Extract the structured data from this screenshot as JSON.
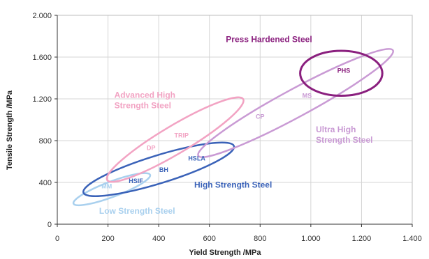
{
  "chart_data": {
    "type": "scatter",
    "title": "",
    "xlabel": "Yield Strength /MPa",
    "ylabel": "Tensile Strength /MPa",
    "xlim": [
      0,
      1400
    ],
    "ylim": [
      0,
      2000
    ],
    "x_ticks": [
      0,
      200,
      400,
      600,
      800,
      1000,
      1200,
      1400
    ],
    "y_ticks": [
      0,
      400,
      800,
      1200,
      1600,
      2000
    ],
    "x_tick_labels": [
      "0",
      "200",
      "400",
      "600",
      "800",
      "1.000",
      "1.200",
      "1.400"
    ],
    "y_tick_labels": [
      "0",
      "400",
      "800",
      "1.200",
      "1.600",
      "2.000"
    ],
    "grid": true,
    "regions": [
      {
        "name": "Low Strength Steel",
        "abbr": "MM",
        "x_range": [
          100,
          330
        ],
        "y_range": [
          230,
          440
        ],
        "color": "#a9d0ee"
      },
      {
        "name": "High Strength Steel",
        "abbr": "",
        "x_range": [
          140,
          660
        ],
        "y_range": [
          330,
          720
        ],
        "color": "#3a62b8"
      },
      {
        "name": "Advanced High Strength Steel",
        "abbr": "",
        "x_range": [
          230,
          700
        ],
        "y_range": [
          470,
          1150
        ],
        "color": "#f2a3c3"
      },
      {
        "name": "Ultra High Strength Steel",
        "abbr": "",
        "x_range": [
          590,
          1290
        ],
        "y_range": [
          700,
          1620
        ],
        "color": "#c99ad4"
      },
      {
        "name": "Press Hardened Steel",
        "abbr": "PHS",
        "x_range": [
          980,
          1260
        ],
        "y_range": [
          1270,
          1620
        ],
        "color": "#8a1f7e"
      }
    ],
    "sub_labels": [
      {
        "text": "MM",
        "x": 195,
        "y": 345,
        "color": "#a9d0ee"
      },
      {
        "text": "HSIF",
        "x": 310,
        "y": 395,
        "color": "#3a62b8"
      },
      {
        "text": "BH",
        "x": 420,
        "y": 500,
        "color": "#3a62b8"
      },
      {
        "text": "HSLA",
        "x": 550,
        "y": 610,
        "color": "#3a62b8"
      },
      {
        "text": "DP",
        "x": 370,
        "y": 710,
        "color": "#f2a3c3"
      },
      {
        "text": "TRIP",
        "x": 490,
        "y": 830,
        "color": "#f2a3c3"
      },
      {
        "text": "CP",
        "x": 800,
        "y": 1010,
        "color": "#c99ad4"
      },
      {
        "text": "MS",
        "x": 985,
        "y": 1210,
        "color": "#c99ad4"
      },
      {
        "text": "PHS",
        "x": 1130,
        "y": 1450,
        "color": "#8a1f7e"
      }
    ],
    "region_labels": [
      {
        "text": "Low Strength Steel",
        "x": 165,
        "y": 100,
        "color": "#a9d0ee"
      },
      {
        "text": "High Strength Steel",
        "x": 540,
        "y": 350,
        "color": "#3a62b8"
      },
      {
        "text": "Advanced High",
        "x": 225,
        "y": 1210,
        "color": "#f2a3c3"
      },
      {
        "text": "Strength Steel",
        "x": 225,
        "y": 1110,
        "color": "#f2a3c3"
      },
      {
        "text": "Ultra High",
        "x": 1020,
        "y": 880,
        "color": "#c99ad4"
      },
      {
        "text": "Strength Steel",
        "x": 1020,
        "y": 780,
        "color": "#c99ad4"
      },
      {
        "text": "Press Hardened Steel",
        "x": 665,
        "y": 1745,
        "color": "#8a1f7e"
      }
    ]
  }
}
